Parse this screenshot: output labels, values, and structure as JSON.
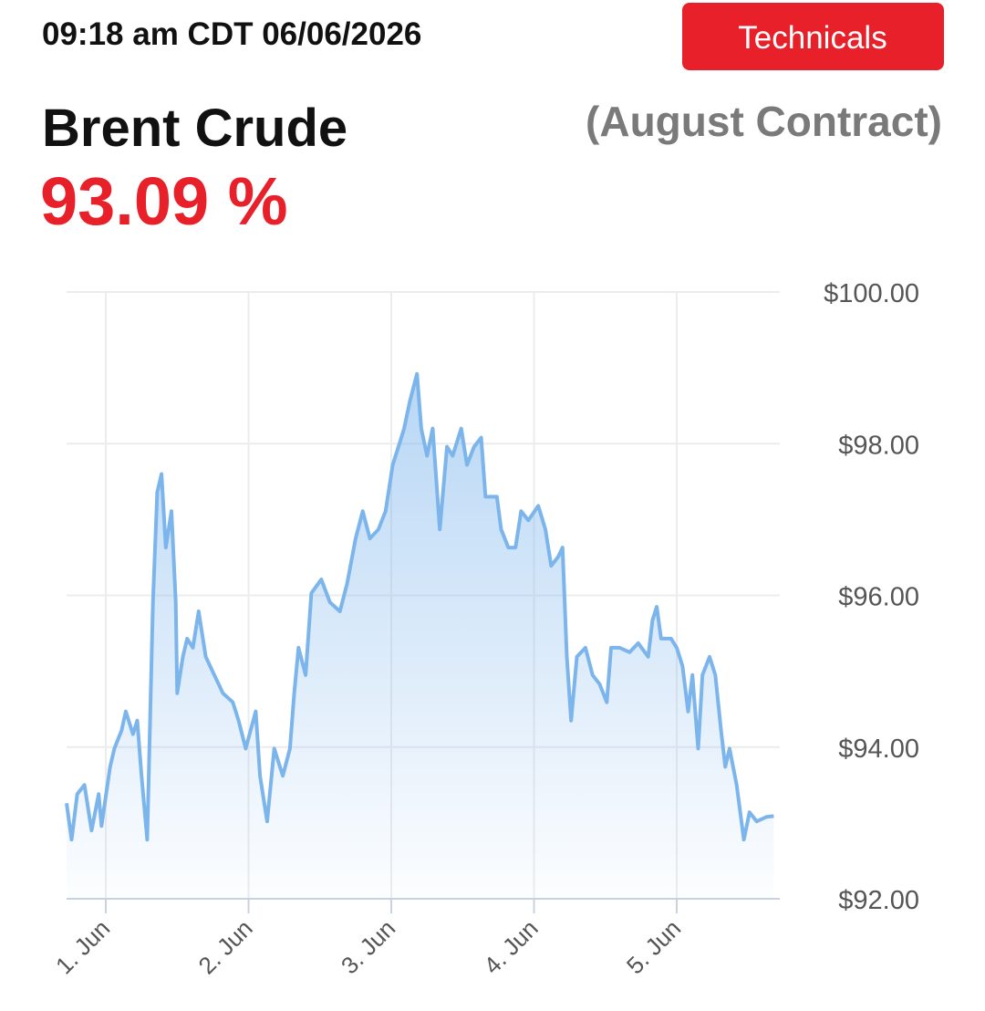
{
  "header": {
    "timestamp": "09:18 am CDT 06/06/2026",
    "button": "Technicals",
    "name": "Brent Crude",
    "contract": "(August Contract)",
    "price": "93.09 %"
  },
  "chart_data": {
    "type": "area",
    "color": "#7cb5ec",
    "x": [
      0.725,
      0.76,
      0.8,
      0.85,
      0.9,
      0.95,
      0.97,
      1.03,
      1.06,
      1.11,
      1.14,
      1.19,
      1.22,
      1.25,
      1.29,
      1.33,
      1.36,
      1.39,
      1.42,
      1.46,
      1.49,
      1.5,
      1.54,
      1.57,
      1.61,
      1.65,
      1.7,
      1.76,
      1.82,
      1.89,
      1.93,
      1.98,
      2.05,
      2.08,
      2.13,
      2.18,
      2.24,
      2.29,
      2.32,
      2.35,
      2.4,
      2.44,
      2.51,
      2.57,
      2.64,
      2.69,
      2.75,
      2.8,
      2.85,
      2.91,
      2.96,
      3.01,
      3.05,
      3.09,
      3.13,
      3.18,
      3.21,
      3.25,
      3.29,
      3.34,
      3.39,
      3.43,
      3.49,
      3.53,
      3.58,
      3.63,
      3.66,
      3.74,
      3.77,
      3.82,
      3.87,
      3.91,
      3.96,
      4.03,
      4.08,
      4.12,
      4.17,
      4.2,
      4.23,
      4.26,
      4.3,
      4.36,
      4.41,
      4.46,
      4.51,
      4.54,
      4.6,
      4.67,
      4.73,
      4.8,
      4.83,
      4.86,
      4.89,
      4.96,
      5.0,
      5.04,
      5.08,
      5.11,
      5.15,
      5.18,
      5.23,
      5.27,
      5.31,
      5.34,
      5.37,
      5.42,
      5.47,
      5.51,
      5.56,
      5.63,
      5.68
    ],
    "values": [
      93.26,
      92.78,
      93.38,
      93.5,
      92.9,
      93.38,
      92.96,
      93.74,
      93.98,
      94.22,
      94.47,
      94.17,
      94.35,
      93.62,
      92.78,
      95.91,
      97.36,
      97.6,
      96.63,
      97.11,
      95.91,
      94.71,
      95.19,
      95.43,
      95.31,
      95.79,
      95.19,
      94.95,
      94.71,
      94.59,
      94.35,
      93.98,
      94.47,
      93.62,
      93.02,
      93.98,
      93.62,
      93.98,
      94.71,
      95.31,
      94.95,
      96.03,
      96.21,
      95.91,
      95.79,
      96.15,
      96.75,
      97.11,
      96.75,
      96.87,
      97.11,
      97.72,
      97.96,
      98.2,
      98.56,
      98.92,
      98.2,
      97.84,
      98.2,
      96.87,
      97.96,
      97.84,
      98.2,
      97.72,
      97.96,
      98.08,
      97.3,
      97.3,
      96.87,
      96.63,
      96.63,
      97.11,
      96.99,
      97.18,
      96.87,
      96.39,
      96.51,
      96.63,
      95.19,
      94.35,
      95.19,
      95.31,
      94.95,
      94.83,
      94.59,
      95.31,
      95.31,
      95.25,
      95.37,
      95.19,
      95.67,
      95.85,
      95.43,
      95.43,
      95.31,
      95.07,
      94.47,
      94.95,
      93.98,
      94.95,
      95.19,
      94.95,
      94.23,
      93.74,
      93.98,
      93.5,
      92.78,
      93.14,
      93.02,
      93.08,
      93.09
    ],
    "xlim": [
      0.725,
      5.69
    ],
    "xticks": [
      {
        "value": 1,
        "label": "1. Jun"
      },
      {
        "value": 2,
        "label": "2. Jun"
      },
      {
        "value": 3,
        "label": "3. Jun"
      },
      {
        "value": 4,
        "label": "4. Jun"
      },
      {
        "value": 5,
        "label": "5. Jun"
      }
    ],
    "ylim": [
      92,
      100
    ],
    "yticks": [
      {
        "value": 92,
        "label": "$92.00"
      },
      {
        "value": 94,
        "label": "$94.00"
      },
      {
        "value": 96,
        "label": "$96.00"
      },
      {
        "value": 98,
        "label": "$98.00"
      },
      {
        "value": 100,
        "label": "$100.00"
      }
    ],
    "grid": true
  }
}
